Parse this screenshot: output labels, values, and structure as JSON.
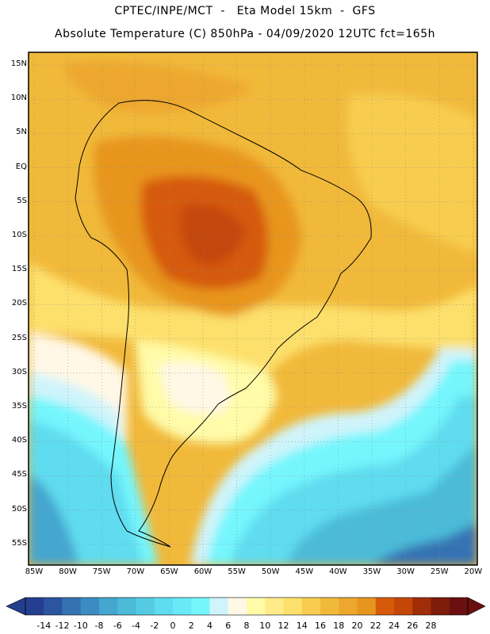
{
  "header": {
    "line1": "CPTEC/INPE/MCT  -   Eta Model 15km  -  GFS",
    "line2": "Absolute Temperature (C) 850hPa - 04/09/2020 12UTC fct=165h"
  },
  "axes": {
    "lat_labels": [
      "15N",
      "10N",
      "5N",
      "EQ",
      "5S",
      "10S",
      "15S",
      "20S",
      "25S",
      "30S",
      "35S",
      "40S",
      "45S",
      "50S",
      "55S"
    ],
    "lon_labels": [
      "85W",
      "80W",
      "75W",
      "70W",
      "65W",
      "60W",
      "55W",
      "50W",
      "45W",
      "40W",
      "35W",
      "30W",
      "25W",
      "20W"
    ]
  },
  "colorbar": {
    "labels": [
      "-14",
      "-12",
      "-10",
      "-8",
      "-6",
      "-4",
      "-2",
      "0",
      "2",
      "4",
      "6",
      "8",
      "10",
      "12",
      "14",
      "16",
      "18",
      "20",
      "22",
      "24",
      "26",
      "28"
    ],
    "colors": [
      "#243f8f",
      "#2c55a0",
      "#3472b3",
      "#3b8cc2",
      "#45a6cf",
      "#4bbbd8",
      "#55cbe3",
      "#5fdcef",
      "#69e9f6",
      "#75f6fd",
      "#cff4fb",
      "#fff8e6",
      "#fffba8",
      "#ffec88",
      "#fde06c",
      "#f8cd4f",
      "#f1b93a",
      "#eda72e",
      "#e8951f",
      "#d65a0a",
      "#c44707",
      "#a02d08",
      "#7e1d0a",
      "#6a1010"
    ]
  },
  "palette": {
    "frame": "#000000",
    "grid": "#8c8c8c",
    "coast": "#000000"
  }
}
